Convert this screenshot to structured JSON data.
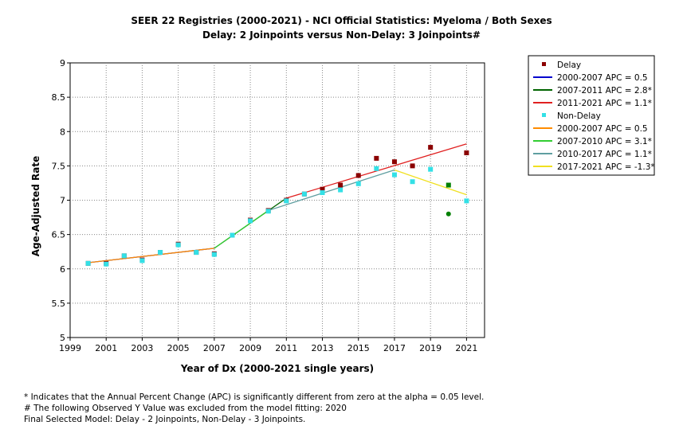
{
  "chart_data": {
    "type": "scatter",
    "title": "SEER 22 Registries (2000-2021) - NCI Official Statistics: Myeloma / Both Sexes",
    "subtitle": "Delay: 2 Joinpoints  versus  Non-Delay: 3 Joinpoints#",
    "xlabel": "Year of Dx (2000-2021 single years)",
    "ylabel": "Age-Adjusted Rate",
    "xlim": [
      1999,
      2022
    ],
    "ylim": [
      5,
      9
    ],
    "xticks": [
      1999,
      2001,
      2003,
      2005,
      2007,
      2009,
      2011,
      2013,
      2015,
      2017,
      2019,
      2021
    ],
    "yticks": [
      5,
      5.5,
      6,
      6.5,
      7,
      7.5,
      8,
      8.5,
      9
    ],
    "ytick_labels": [
      "5",
      "5.5",
      "6",
      "6.5",
      "7",
      "7.5",
      "8",
      "8.5",
      "9"
    ],
    "grid": true,
    "legend_position": "right",
    "points": [
      {
        "name": "Delay",
        "color": "#8b0000",
        "marker": "square",
        "x": [
          2000,
          2001,
          2002,
          2003,
          2004,
          2005,
          2006,
          2007,
          2008,
          2009,
          2010,
          2011,
          2012,
          2013,
          2014,
          2015,
          2016,
          2017,
          2018,
          2019,
          2021
        ],
        "y": [
          6.08,
          6.08,
          6.19,
          6.13,
          6.24,
          6.36,
          6.24,
          6.22,
          6.49,
          6.71,
          6.85,
          7.0,
          7.09,
          7.16,
          7.22,
          7.36,
          7.61,
          7.56,
          7.5,
          7.77,
          7.69
        ]
      },
      {
        "name": "Non-Delay",
        "color": "#33e0e6",
        "marker": "square",
        "x": [
          2000,
          2001,
          2002,
          2003,
          2004,
          2005,
          2006,
          2007,
          2008,
          2009,
          2010,
          2011,
          2012,
          2013,
          2014,
          2015,
          2016,
          2017,
          2018,
          2019,
          2021
        ],
        "y": [
          6.08,
          6.07,
          6.19,
          6.12,
          6.24,
          6.35,
          6.24,
          6.21,
          6.49,
          6.7,
          6.84,
          6.99,
          7.09,
          7.11,
          7.15,
          7.24,
          7.46,
          7.37,
          7.27,
          7.45,
          6.99
        ]
      },
      {
        "name": "",
        "color": "#008000",
        "marker": "square",
        "x": [
          2020
        ],
        "y": [
          7.22
        ]
      },
      {
        "name": "",
        "color": "#008000",
        "marker": "circle",
        "x": [
          2020
        ],
        "y": [
          6.8
        ]
      }
    ],
    "series": [
      {
        "name": "2000-2007 APC  = 0.5",
        "color": "#0000cd",
        "x": [
          2000,
          2007
        ],
        "y": [
          6.09,
          6.3
        ]
      },
      {
        "name": "2007-2011 APC  = 2.8*",
        "color": "#006400",
        "x": [
          2007,
          2011
        ],
        "y": [
          6.3,
          7.03
        ]
      },
      {
        "name": "2011-2021 APC  = 1.1*",
        "color": "#e02020",
        "x": [
          2011,
          2021
        ],
        "y": [
          7.03,
          7.82
        ]
      },
      {
        "name": "2000-2007 APC  =  0.5",
        "color": "#ff8c00",
        "x": [
          2000,
          2007
        ],
        "y": [
          6.09,
          6.3
        ]
      },
      {
        "name": "2007-2010 APC  = 3.1*",
        "color": "#32cd32",
        "x": [
          2007,
          2010
        ],
        "y": [
          6.3,
          6.85
        ]
      },
      {
        "name": "2010-2017 APC  = 1.1*",
        "color": "#5f9ea0",
        "x": [
          2010,
          2017
        ],
        "y": [
          6.85,
          7.44
        ]
      },
      {
        "name": "2017-2021 APC  = -1.3*",
        "color": "#f0e020",
        "x": [
          2017,
          2021
        ],
        "y": [
          7.44,
          7.08
        ]
      }
    ],
    "legend": [
      {
        "label": "Delay",
        "kind": "point",
        "color": "#8b0000"
      },
      {
        "label": "2000-2007 APC  = 0.5",
        "kind": "line",
        "color": "#0000cd"
      },
      {
        "label": "2007-2011 APC  = 2.8*",
        "kind": "line",
        "color": "#006400"
      },
      {
        "label": "2011-2021 APC  = 1.1*",
        "kind": "line",
        "color": "#e02020"
      },
      {
        "label": "Non-Delay",
        "kind": "point",
        "color": "#33e0e6"
      },
      {
        "label": "2000-2007 APC  =  0.5",
        "kind": "line",
        "color": "#ff8c00"
      },
      {
        "label": "2007-2010 APC  = 3.1*",
        "kind": "line",
        "color": "#32cd32"
      },
      {
        "label": "2010-2017 APC  = 1.1*",
        "kind": "line",
        "color": "#5f9ea0"
      },
      {
        "label": "2017-2021 APC  = -1.3*",
        "kind": "line",
        "color": "#f0e020"
      }
    ]
  },
  "footnotes": [
    "* Indicates that the Annual Percent Change (APC) is significantly different from zero at the alpha = 0.05 level.",
    " # The following Observed Y Value was excluded from the model fitting: 2020",
    "Final Selected Model: Delay - 2 Joinpoints, Non-Delay - 3 Joinpoints."
  ]
}
